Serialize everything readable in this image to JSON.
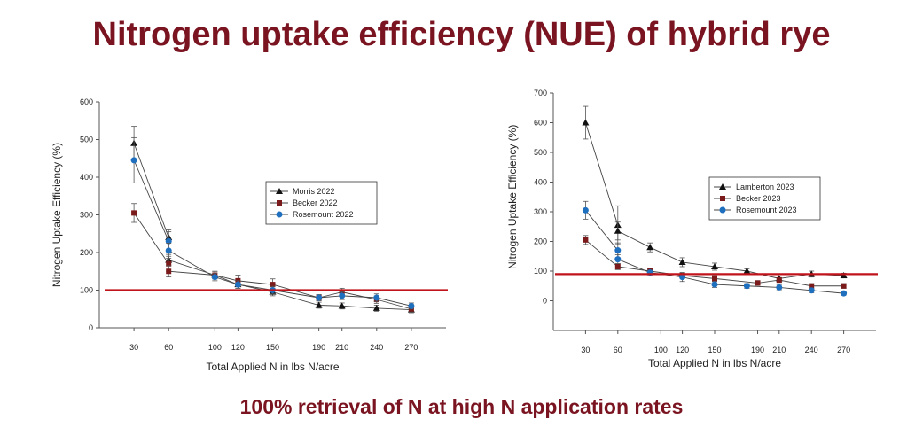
{
  "slide": {
    "title": "Nitrogen uptake efficiency (NUE) of hybrid rye",
    "caption": "100% retrieval of N at high N application rates",
    "colors": {
      "title": "#7a1420",
      "reference_line": "#c0141c"
    }
  },
  "chart_data": [
    {
      "type": "line",
      "title": "",
      "xlabel": "Total Applied N in lbs N/acre",
      "ylabel": "Nitrogen Uptake Efficiency (%)",
      "x_ticks": [
        30,
        60,
        100,
        120,
        150,
        190,
        210,
        240,
        270
      ],
      "y_ticks": [
        0,
        100,
        200,
        300,
        400,
        500,
        600
      ],
      "xlim": [
        0,
        300
      ],
      "ylim": [
        0,
        600
      ],
      "grid": false,
      "legend_position": "center-right",
      "reference_line": {
        "y": 100,
        "color": "#c0141c"
      },
      "series": [
        {
          "name": "Morris 2022",
          "marker": "triangle",
          "color": "#111111",
          "points": [
            [
              30,
              490,
              45
            ],
            [
              60,
              240,
              20
            ],
            [
              60,
              180,
              15
            ],
            [
              100,
              140,
              10
            ],
            [
              120,
              115,
              10
            ],
            [
              150,
              95,
              10
            ],
            [
              190,
              60,
              8
            ],
            [
              210,
              58,
              8
            ],
            [
              240,
              52,
              8
            ],
            [
              270,
              48,
              8
            ]
          ]
        },
        {
          "name": "Becker 2022",
          "marker": "square",
          "color": "#7a1a1a",
          "points": [
            [
              30,
              305,
              25
            ],
            [
              60,
              170,
              20
            ],
            [
              60,
              150,
              15
            ],
            [
              100,
              140,
              10
            ],
            [
              120,
              125,
              15
            ],
            [
              150,
              115,
              15
            ],
            [
              190,
              80,
              8
            ],
            [
              210,
              95,
              10
            ],
            [
              240,
              75,
              10
            ],
            [
              270,
              50,
              8
            ]
          ]
        },
        {
          "name": "Rosemount 2022",
          "marker": "circle",
          "color": "#1f6fbf",
          "points": [
            [
              30,
              445,
              60
            ],
            [
              60,
              230,
              25
            ],
            [
              60,
              205,
              20
            ],
            [
              100,
              135,
              10
            ],
            [
              120,
              115,
              10
            ],
            [
              150,
              100,
              10
            ],
            [
              190,
              80,
              8
            ],
            [
              210,
              85,
              10
            ],
            [
              240,
              80,
              10
            ],
            [
              270,
              58,
              8
            ]
          ]
        }
      ]
    },
    {
      "type": "line",
      "title": "",
      "xlabel": "Total Applied N in lbs N/acre",
      "ylabel": "Nitrogen Uptake Efficiency (%)",
      "x_ticks": [
        30,
        60,
        100,
        120,
        150,
        190,
        210,
        240,
        270
      ],
      "y_ticks": [
        0,
        100,
        200,
        300,
        400,
        500,
        600,
        700
      ],
      "xlim": [
        0,
        300
      ],
      "ylim": [
        -100,
        700
      ],
      "grid": false,
      "legend_position": "center-right",
      "reference_line": {
        "y": 90,
        "color": "#c0141c"
      },
      "series": [
        {
          "name": "Lamberton 2023",
          "marker": "triangle",
          "color": "#111111",
          "points": [
            [
              30,
              600,
              55
            ],
            [
              60,
              255,
              65
            ],
            [
              60,
              235,
              30
            ],
            [
              90,
              180,
              15
            ],
            [
              120,
              130,
              15
            ],
            [
              150,
              115,
              12
            ],
            [
              180,
              100,
              8
            ],
            [
              210,
              75,
              8
            ],
            [
              240,
              90,
              10
            ],
            [
              270,
              85,
              8
            ]
          ]
        },
        {
          "name": "Becker 2023",
          "marker": "square",
          "color": "#7a1a1a",
          "points": [
            [
              30,
              205,
              15
            ],
            [
              60,
              115,
              10
            ],
            [
              90,
              100,
              8
            ],
            [
              120,
              85,
              10
            ],
            [
              150,
              75,
              10
            ],
            [
              190,
              60,
              8
            ],
            [
              210,
              70,
              8
            ],
            [
              240,
              50,
              8
            ],
            [
              270,
              50,
              8
            ]
          ]
        },
        {
          "name": "Rosemount 2023",
          "marker": "circle",
          "color": "#1f6fbf",
          "points": [
            [
              30,
              305,
              30
            ],
            [
              60,
              170,
              25
            ],
            [
              60,
              140,
              15
            ],
            [
              90,
              95,
              8
            ],
            [
              120,
              80,
              15
            ],
            [
              150,
              55,
              10
            ],
            [
              180,
              50,
              8
            ],
            [
              210,
              45,
              8
            ],
            [
              240,
              35,
              8
            ],
            [
              270,
              25,
              6
            ]
          ]
        }
      ]
    }
  ]
}
